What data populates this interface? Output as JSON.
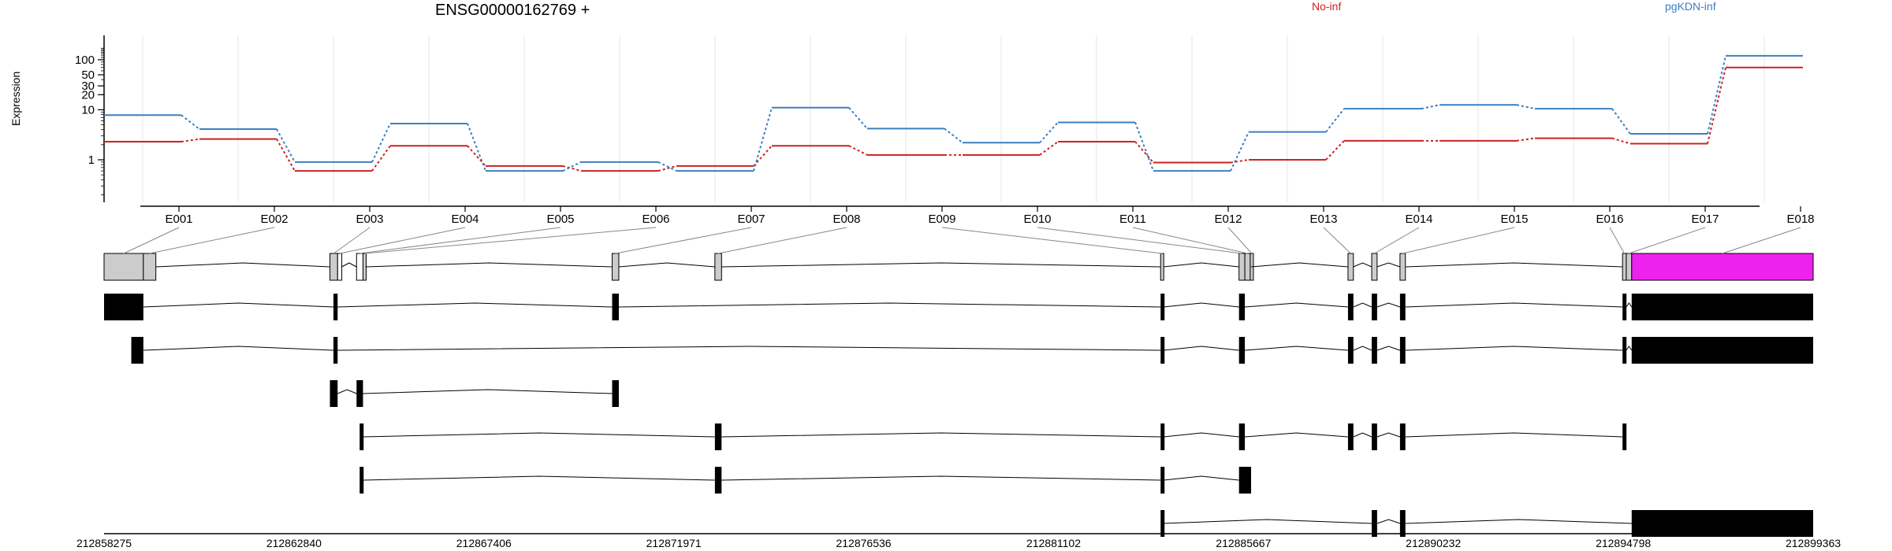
{
  "title": "ENSG00000162769 +",
  "chart_data": {
    "type": "line",
    "ylabel": "Expression",
    "yscale": "log",
    "ytick_labels": [
      "1",
      "10",
      "20",
      "30",
      "50",
      "100"
    ],
    "yticks": [
      1,
      10,
      20,
      30,
      50,
      100
    ],
    "categories": [
      "E001",
      "E002",
      "E003",
      "E004",
      "E005",
      "E006",
      "E007",
      "E008",
      "E009",
      "E010",
      "E011",
      "E012",
      "E013",
      "E014",
      "E015",
      "E016",
      "E017",
      "E018"
    ],
    "series": [
      {
        "name": "No-inf",
        "color": "#cc2222",
        "values": [
          2.3,
          2.6,
          0.6,
          1.9,
          0.75,
          0.6,
          0.75,
          1.9,
          1.25,
          1.25,
          2.3,
          0.88,
          1.0,
          2.4,
          2.4,
          2.7,
          2.1,
          70
        ]
      },
      {
        "name": "pgKDN-inf",
        "color": "#3b7fc4",
        "values": [
          7.8,
          4.1,
          0.9,
          5.3,
          0.6,
          0.9,
          0.6,
          11,
          4.2,
          2.2,
          5.6,
          0.6,
          3.6,
          10.5,
          12.5,
          10.5,
          3.3,
          120
        ]
      }
    ],
    "axis_line_x": [
      "212858275",
      "212862840",
      "212867406",
      "212871971",
      "212876536",
      "212881102",
      "212885667",
      "212890232",
      "212894798",
      "212899363"
    ]
  },
  "gene_model": {
    "coord_range": [
      212858275,
      212899363
    ],
    "exon_bins": [
      {
        "id": "E001",
        "start": 212858275,
        "end": 212859220
      },
      {
        "id": "E002",
        "start": 212859220,
        "end": 212859520
      },
      {
        "id": "E003",
        "start": 212863705,
        "end": 212863890
      },
      {
        "id": "E004",
        "start": 212863890,
        "end": 212863990
      },
      {
        "id": "E005",
        "start": 212864345,
        "end": 212864500
      },
      {
        "id": "E006",
        "start": 212864500,
        "end": 212864560
      },
      {
        "id": "E007",
        "start": 212870490,
        "end": 212870650
      },
      {
        "id": "E008",
        "start": 212872960,
        "end": 212873120
      },
      {
        "id": "E009",
        "start": 212883675,
        "end": 212883745
      },
      {
        "id": "E010",
        "start": 212885560,
        "end": 212885700
      },
      {
        "id": "E011",
        "start": 212885700,
        "end": 212885830
      },
      {
        "id": "E012",
        "start": 212885830,
        "end": 212885850
      },
      {
        "id": "E013",
        "start": 212888180,
        "end": 212888310
      },
      {
        "id": "E014",
        "start": 212888750,
        "end": 212888880
      },
      {
        "id": "E015",
        "start": 212889430,
        "end": 212889560
      },
      {
        "id": "E016",
        "start": 212894780,
        "end": 212894870
      },
      {
        "id": "E017",
        "start": 212894870,
        "end": 212895000
      },
      {
        "id": "E018",
        "start": 212895000,
        "end": 212899363
      }
    ],
    "transcripts": [
      {
        "exons": [
          [
            212858275,
            212859220
          ],
          [
            212863790,
            212863890
          ],
          [
            212870490,
            212870650
          ],
          [
            212883675,
            212883745
          ],
          [
            212885560,
            212885700
          ],
          [
            212888180,
            212888310
          ],
          [
            212888750,
            212888880
          ],
          [
            212889430,
            212889560
          ],
          [
            212894780,
            212894870
          ],
          [
            212895000,
            212899363
          ]
        ]
      },
      {
        "exons": [
          [
            212858930,
            212859220
          ],
          [
            212863790,
            212863890
          ],
          [
            212883675,
            212883745
          ],
          [
            212885560,
            212885700
          ],
          [
            212888180,
            212888310
          ],
          [
            212888750,
            212888880
          ],
          [
            212889430,
            212889560
          ],
          [
            212894780,
            212894870
          ],
          [
            212895000,
            212899363
          ]
        ]
      },
      {
        "exons": [
          [
            212863705,
            212863890
          ],
          [
            212864345,
            212864500
          ],
          [
            212870490,
            212870650
          ]
        ]
      },
      {
        "exons": [
          [
            212864420,
            212864500
          ],
          [
            212872960,
            212873120
          ],
          [
            212883675,
            212883745
          ],
          [
            212885560,
            212885700
          ],
          [
            212888180,
            212888310
          ],
          [
            212888750,
            212888880
          ],
          [
            212889430,
            212889560
          ],
          [
            212894780,
            212894870
          ]
        ]
      },
      {
        "exons": [
          [
            212864420,
            212864500
          ],
          [
            212872960,
            212873120
          ],
          [
            212883675,
            212883745
          ],
          [
            212885560,
            212885850
          ]
        ]
      },
      {
        "exons": [
          [
            212883675,
            212883710
          ],
          [
            212888750,
            212888880
          ],
          [
            212889430,
            212889560
          ],
          [
            212895000,
            212899363
          ]
        ]
      }
    ]
  }
}
